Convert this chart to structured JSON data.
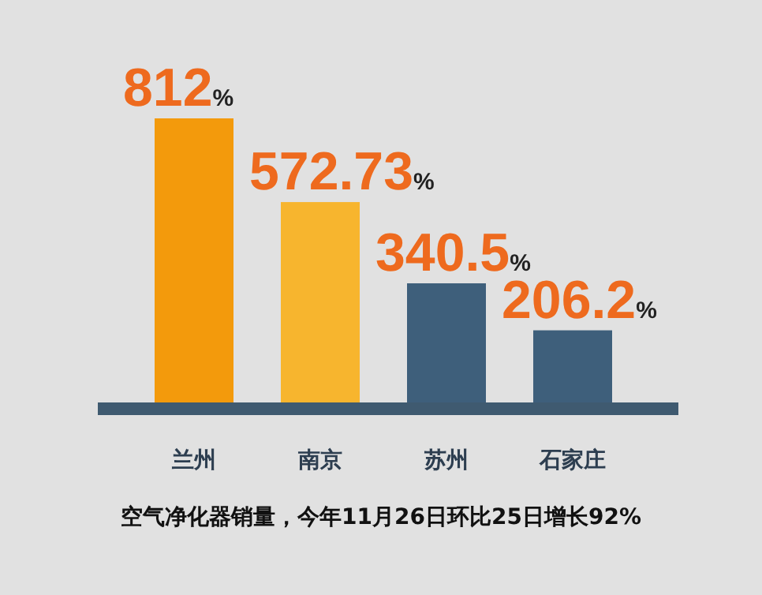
{
  "chart_data": {
    "type": "bar",
    "categories": [
      "兰州",
      "南京",
      "苏州",
      "石家庄"
    ],
    "values": [
      812,
      572.73,
      340.5,
      206.2
    ],
    "value_labels": [
      "812%",
      "572.73%",
      "340.5%",
      "206.2%"
    ],
    "colors": [
      "#f39a0c",
      "#f7b52e",
      "#3e5f7b",
      "#3e5f7b"
    ],
    "annotations": [
      "空气净化器销量，今年11月26日环比25日增长92%"
    ]
  }
}
